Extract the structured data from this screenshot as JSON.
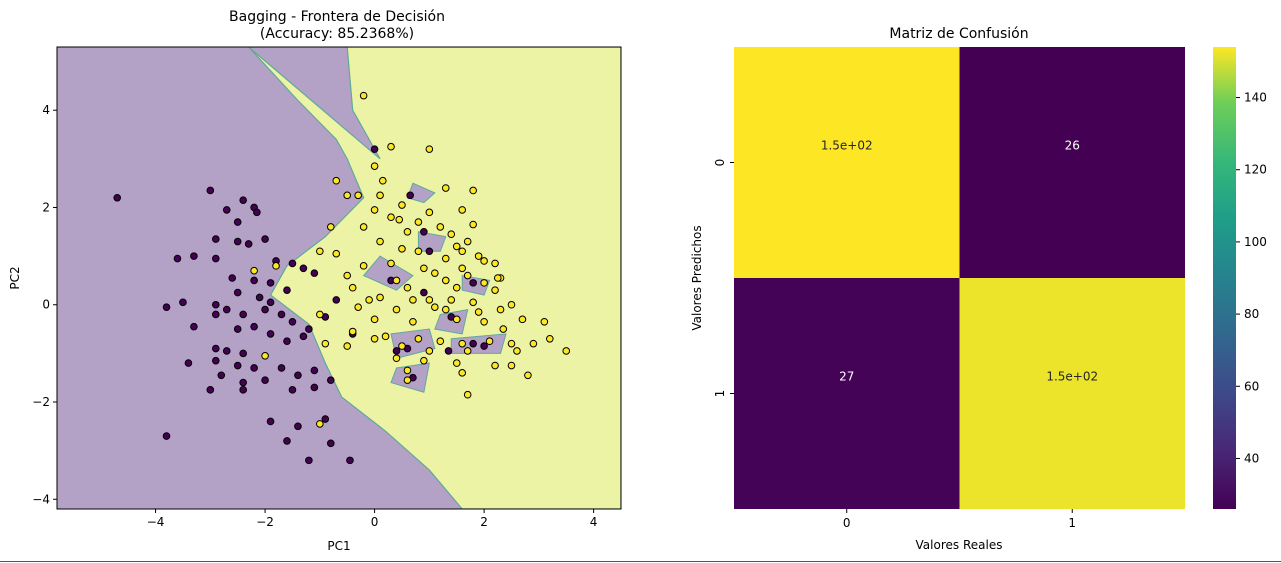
{
  "chart_data": [
    {
      "type": "scatter",
      "title_line1": "Bagging - Frontera de Decisión",
      "title_line2": "(Accuracy: 85.2368%)",
      "xlabel": "PC1",
      "ylabel": "PC2",
      "xlim": [
        -5.8,
        4.5
      ],
      "ylim": [
        -4.2,
        5.3
      ],
      "xticks": [
        -4,
        -2,
        0,
        2,
        4
      ],
      "yticks": [
        -4,
        -2,
        0,
        2,
        4
      ],
      "grid": false,
      "colors": {
        "class0": "#440154",
        "class1": "#fde725",
        "region0": "#b3a2c6",
        "region1": "#ecf3a5",
        "boundary": "#5fa99b"
      },
      "boundary_polygon_class1": [
        [
          -2.3,
          5.3
        ],
        [
          -1.4,
          4.2
        ],
        [
          -0.7,
          3.4
        ],
        [
          -0.5,
          3.0
        ],
        [
          -0.2,
          2.2
        ],
        [
          -0.9,
          1.4
        ],
        [
          -1.6,
          0.8
        ],
        [
          -1.9,
          0.2
        ],
        [
          -1.2,
          -0.4
        ],
        [
          -0.9,
          -1.2
        ],
        [
          -0.6,
          -1.9
        ],
        [
          0.2,
          -2.6
        ],
        [
          1.0,
          -3.4
        ],
        [
          1.6,
          -4.2
        ],
        [
          4.5,
          -4.2
        ],
        [
          4.5,
          5.3
        ],
        [
          -0.5,
          5.3
        ],
        [
          -0.4,
          4.0
        ],
        [
          0.0,
          3.2
        ],
        [
          0.1,
          3.0
        ]
      ],
      "boundary_polygons_class0": [
        [
          [
            0.7,
            2.5
          ],
          [
            1.1,
            2.3
          ],
          [
            0.9,
            2.1
          ],
          [
            0.6,
            2.2
          ]
        ],
        [
          [
            0.8,
            1.5
          ],
          [
            1.3,
            1.4
          ],
          [
            1.2,
            1.1
          ],
          [
            0.8,
            1.1
          ]
        ],
        [
          [
            0.1,
            1.0
          ],
          [
            0.7,
            0.6
          ],
          [
            0.4,
            0.3
          ],
          [
            -0.2,
            0.6
          ]
        ],
        [
          [
            0.3,
            -0.6
          ],
          [
            1.0,
            -0.5
          ],
          [
            1.1,
            -0.9
          ],
          [
            0.4,
            -1.1
          ]
        ],
        [
          [
            0.4,
            -1.3
          ],
          [
            1.0,
            -1.2
          ],
          [
            0.9,
            -1.8
          ],
          [
            0.3,
            -1.6
          ]
        ],
        [
          [
            1.2,
            -0.2
          ],
          [
            1.7,
            -0.1
          ],
          [
            1.6,
            -0.6
          ],
          [
            1.1,
            -0.5
          ]
        ],
        [
          [
            1.6,
            0.6
          ],
          [
            2.1,
            0.5
          ],
          [
            2.0,
            0.2
          ],
          [
            1.6,
            0.3
          ]
        ],
        [
          [
            1.4,
            -0.7
          ],
          [
            2.4,
            -0.6
          ],
          [
            2.3,
            -1.0
          ],
          [
            1.4,
            -1.0
          ]
        ]
      ],
      "points_class0": [
        [
          -4.7,
          2.2
        ],
        [
          -3.0,
          2.35
        ],
        [
          -2.7,
          1.95
        ],
        [
          -2.4,
          2.15
        ],
        [
          -2.2,
          2.0
        ],
        [
          -2.5,
          1.7
        ],
        [
          -2.15,
          1.9
        ],
        [
          -2.9,
          1.35
        ],
        [
          -2.5,
          1.3
        ],
        [
          -2.3,
          1.25
        ],
        [
          -2.0,
          1.35
        ],
        [
          -3.3,
          1.0
        ],
        [
          -3.6,
          0.95
        ],
        [
          -2.9,
          0.95
        ],
        [
          -1.8,
          0.9
        ],
        [
          -1.5,
          0.85
        ],
        [
          -1.3,
          0.75
        ],
        [
          -1.1,
          0.65
        ],
        [
          -2.6,
          0.55
        ],
        [
          -2.2,
          0.5
        ],
        [
          -1.9,
          0.45
        ],
        [
          -1.6,
          0.3
        ],
        [
          -2.5,
          0.25
        ],
        [
          -2.1,
          0.15
        ],
        [
          -1.9,
          0.05
        ],
        [
          -3.5,
          0.05
        ],
        [
          -2.9,
          0.0
        ],
        [
          -2.7,
          -0.1
        ],
        [
          -2.4,
          -0.2
        ],
        [
          -2.0,
          -0.1
        ],
        [
          -1.7,
          -0.2
        ],
        [
          -1.5,
          -0.35
        ],
        [
          -1.2,
          -0.5
        ],
        [
          -3.3,
          -0.45
        ],
        [
          -2.9,
          -0.2
        ],
        [
          -2.5,
          -0.5
        ],
        [
          -2.2,
          -0.45
        ],
        [
          -1.9,
          -0.6
        ],
        [
          -1.6,
          -0.75
        ],
        [
          -1.3,
          -0.65
        ],
        [
          -2.9,
          -0.9
        ],
        [
          -2.7,
          -0.95
        ],
        [
          -2.4,
          -1.0
        ],
        [
          -3.4,
          -1.2
        ],
        [
          -2.9,
          -1.15
        ],
        [
          -2.5,
          -1.25
        ],
        [
          -2.2,
          -1.3
        ],
        [
          -1.7,
          -1.3
        ],
        [
          -1.4,
          -1.45
        ],
        [
          -1.1,
          -1.35
        ],
        [
          -2.8,
          -1.45
        ],
        [
          -2.4,
          -1.6
        ],
        [
          -2.0,
          -1.55
        ],
        [
          -1.5,
          -1.75
        ],
        [
          -1.1,
          -1.7
        ],
        [
          -0.8,
          -1.55
        ],
        [
          -3.0,
          -1.75
        ],
        [
          -2.4,
          -1.75
        ],
        [
          -1.9,
          -2.4
        ],
        [
          -1.6,
          -2.8
        ],
        [
          -1.4,
          -2.5
        ],
        [
          -0.9,
          -2.35
        ],
        [
          -0.8,
          -2.85
        ],
        [
          -3.8,
          -2.7
        ],
        [
          -1.2,
          -3.2
        ],
        [
          -0.45,
          -3.2
        ],
        [
          -3.8,
          -0.05
        ],
        [
          -0.9,
          -0.25
        ],
        [
          -0.7,
          0.1
        ],
        [
          -0.4,
          -0.6
        ],
        [
          0.0,
          3.2
        ],
        [
          0.65,
          2.25
        ],
        [
          0.9,
          1.5
        ],
        [
          1.0,
          1.1
        ],
        [
          0.3,
          0.5
        ],
        [
          0.9,
          0.25
        ],
        [
          0.6,
          -0.9
        ],
        [
          0.4,
          -0.95
        ],
        [
          0.7,
          -1.5
        ],
        [
          1.35,
          -0.95
        ],
        [
          1.8,
          -0.8
        ],
        [
          2.0,
          -0.85
        ],
        [
          1.4,
          -0.25
        ],
        [
          1.8,
          0.45
        ]
      ],
      "points_class1": [
        [
          -0.2,
          4.3
        ],
        [
          0.3,
          3.25
        ],
        [
          1.0,
          3.2
        ],
        [
          0.0,
          2.85
        ],
        [
          -0.7,
          2.55
        ],
        [
          0.15,
          2.55
        ],
        [
          1.3,
          2.4
        ],
        [
          1.8,
          2.35
        ],
        [
          -0.5,
          2.25
        ],
        [
          -0.3,
          2.25
        ],
        [
          0.1,
          2.25
        ],
        [
          0.5,
          2.05
        ],
        [
          0.0,
          1.95
        ],
        [
          1.0,
          1.9
        ],
        [
          1.6,
          1.95
        ],
        [
          0.3,
          1.8
        ],
        [
          0.45,
          1.75
        ],
        [
          0.8,
          1.7
        ],
        [
          -0.8,
          1.6
        ],
        [
          -0.2,
          1.6
        ],
        [
          1.2,
          1.6
        ],
        [
          1.8,
          1.65
        ],
        [
          0.6,
          1.5
        ],
        [
          1.4,
          1.45
        ],
        [
          0.1,
          1.3
        ],
        [
          1.7,
          1.3
        ],
        [
          1.5,
          1.2
        ],
        [
          0.5,
          1.15
        ],
        [
          -1.0,
          1.1
        ],
        [
          -0.7,
          1.05
        ],
        [
          0.8,
          1.1
        ],
        [
          1.6,
          1.1
        ],
        [
          1.9,
          1.0
        ],
        [
          1.3,
          0.95
        ],
        [
          2.0,
          0.9
        ],
        [
          0.3,
          0.85
        ],
        [
          -0.2,
          0.8
        ],
        [
          0.9,
          0.75
        ],
        [
          1.6,
          0.75
        ],
        [
          2.2,
          0.85
        ],
        [
          -0.5,
          0.6
        ],
        [
          1.1,
          0.65
        ],
        [
          1.7,
          0.6
        ],
        [
          2.3,
          0.55
        ],
        [
          0.4,
          0.5
        ],
        [
          1.3,
          0.5
        ],
        [
          2.0,
          0.45
        ],
        [
          -0.4,
          0.35
        ],
        [
          0.6,
          0.35
        ],
        [
          1.5,
          0.35
        ],
        [
          2.2,
          0.3
        ],
        [
          0.1,
          0.15
        ],
        [
          -0.1,
          0.1
        ],
        [
          0.7,
          0.1
        ],
        [
          1.0,
          0.1
        ],
        [
          1.4,
          0.1
        ],
        [
          1.8,
          0.05
        ],
        [
          2.5,
          0.0
        ],
        [
          -0.3,
          -0.05
        ],
        [
          0.4,
          -0.1
        ],
        [
          1.1,
          -0.05
        ],
        [
          1.3,
          -0.1
        ],
        [
          1.9,
          -0.15
        ],
        [
          2.3,
          -0.1
        ],
        [
          0.0,
          -0.3
        ],
        [
          0.7,
          -0.35
        ],
        [
          1.5,
          -0.3
        ],
        [
          2.0,
          -0.35
        ],
        [
          2.7,
          -0.3
        ],
        [
          3.1,
          -0.35
        ],
        [
          -0.4,
          -0.55
        ],
        [
          0.2,
          -0.65
        ],
        [
          0.8,
          -0.7
        ],
        [
          1.2,
          -0.75
        ],
        [
          1.6,
          -0.8
        ],
        [
          2.1,
          -0.75
        ],
        [
          2.5,
          -0.8
        ],
        [
          2.9,
          -0.8
        ],
        [
          3.2,
          -0.7
        ],
        [
          -0.9,
          -0.8
        ],
        [
          0.0,
          -0.7
        ],
        [
          0.5,
          -0.85
        ],
        [
          1.0,
          -0.95
        ],
        [
          1.7,
          -0.95
        ],
        [
          2.6,
          -0.95
        ],
        [
          3.5,
          -0.95
        ],
        [
          0.4,
          -1.1
        ],
        [
          0.9,
          -1.15
        ],
        [
          1.5,
          -1.2
        ],
        [
          2.2,
          -1.25
        ],
        [
          2.5,
          -1.25
        ],
        [
          0.6,
          -1.35
        ],
        [
          1.6,
          -1.4
        ],
        [
          2.8,
          -1.45
        ],
        [
          0.6,
          -1.55
        ],
        [
          1.7,
          -1.85
        ],
        [
          -1.8,
          0.8
        ],
        [
          -2.2,
          0.7
        ],
        [
          -1.0,
          -0.2
        ],
        [
          -2.0,
          -1.05
        ],
        [
          -1.0,
          -2.45
        ],
        [
          -0.5,
          -0.85
        ],
        [
          2.25,
          0.55
        ],
        [
          2.35,
          -0.5
        ]
      ]
    },
    {
      "type": "heatmap",
      "title": "Matriz de Confusión",
      "xlabel": "Valores Reales",
      "ylabel": "Valores Predichos",
      "x_categories": [
        "0",
        "1"
      ],
      "y_categories": [
        "0",
        "1"
      ],
      "values": [
        [
          154,
          26
        ],
        [
          27,
          152
        ]
      ],
      "annotations": [
        [
          "1.5e+02",
          "26"
        ],
        [
          "27",
          "1.5e+02"
        ]
      ],
      "colorbar": {
        "min": 26,
        "max": 154,
        "ticks": [
          40,
          60,
          80,
          100,
          120,
          140
        ],
        "colormap": "viridis"
      }
    }
  ]
}
